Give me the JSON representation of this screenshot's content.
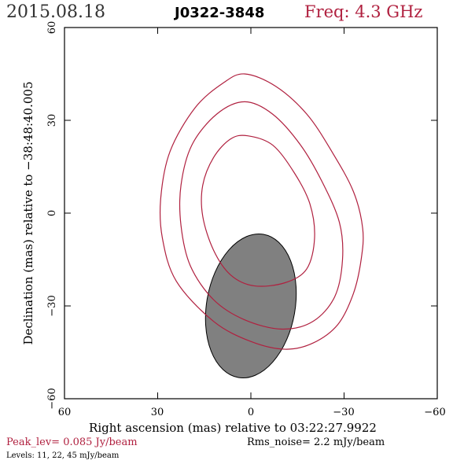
{
  "header": {
    "date": "2015.08.18",
    "source": "J0322-3848",
    "freq": "Freq: 4.3 GHz"
  },
  "axes": {
    "xlabel": "Right ascension (mas) relative to 03:22:27.9922",
    "ylabel": "Declination (mas) relative to −38:48:40.005",
    "xticks": [
      "60",
      "30",
      "0",
      "−30",
      "−60"
    ],
    "yticks": [
      "60",
      "30",
      "0",
      "−30",
      "−60"
    ]
  },
  "footer": {
    "peak": "Peak_lev=  0.085 Jy/beam",
    "rms": "Rms_noise=  2.2 mJy/beam",
    "levels": "Levels:  11,  22,  45 mJy/beam"
  },
  "colors": {
    "contour": "#b0203f",
    "beam_fill": "#808080",
    "axis": "#000000",
    "freq_text": "#b0203f",
    "peak_text": "#b0203f"
  },
  "chart_data": {
    "type": "contour",
    "xlim": [
      60,
      -60
    ],
    "ylim": [
      -60,
      60
    ],
    "x_unit": "mas",
    "y_unit": "mas",
    "levels_mjy_per_beam": [
      11,
      22,
      45
    ],
    "contours": [
      {
        "level": 11,
        "points": [
          [
            2,
            45
          ],
          [
            -8,
            41
          ],
          [
            -18,
            32
          ],
          [
            -26,
            20
          ],
          [
            -33,
            7
          ],
          [
            -36,
            -5
          ],
          [
            -35.5,
            -15
          ],
          [
            -33,
            -26
          ],
          [
            -28,
            -36
          ],
          [
            -20,
            -42
          ],
          [
            -11,
            -44
          ],
          [
            0,
            -41.5
          ],
          [
            12,
            -35
          ],
          [
            24,
            -22
          ],
          [
            28.5,
            -8
          ],
          [
            29,
            5
          ],
          [
            26,
            20
          ],
          [
            18,
            34
          ],
          [
            9,
            42
          ],
          [
            2,
            45
          ]
        ]
      },
      {
        "level": 22,
        "points": [
          [
            2,
            36
          ],
          [
            -7,
            32
          ],
          [
            -16,
            22
          ],
          [
            -23,
            10
          ],
          [
            -28.5,
            -3
          ],
          [
            -29.5,
            -15
          ],
          [
            -27,
            -27
          ],
          [
            -20,
            -35
          ],
          [
            -10,
            -37.5
          ],
          [
            2,
            -34.5
          ],
          [
            12,
            -28
          ],
          [
            19.5,
            -17
          ],
          [
            22.5,
            -4
          ],
          [
            22.5,
            9
          ],
          [
            19,
            22
          ],
          [
            11,
            32
          ],
          [
            2,
            36
          ]
        ]
      },
      {
        "level": 45,
        "points": [
          [
            1,
            25
          ],
          [
            -7,
            22
          ],
          [
            -14,
            13
          ],
          [
            -19,
            3
          ],
          [
            -20.5,
            -8
          ],
          [
            -18,
            -18
          ],
          [
            -11,
            -22.5
          ],
          [
            -1,
            -23.5
          ],
          [
            6.5,
            -20
          ],
          [
            12,
            -12
          ],
          [
            15.5,
            -1
          ],
          [
            15.5,
            9
          ],
          [
            12,
            18
          ],
          [
            6.5,
            24
          ],
          [
            1,
            25
          ]
        ]
      }
    ],
    "beam": {
      "center": [
        0,
        -30
      ],
      "major_mas": 47,
      "minor_mas": 28.5,
      "pa_deg": 10
    }
  }
}
